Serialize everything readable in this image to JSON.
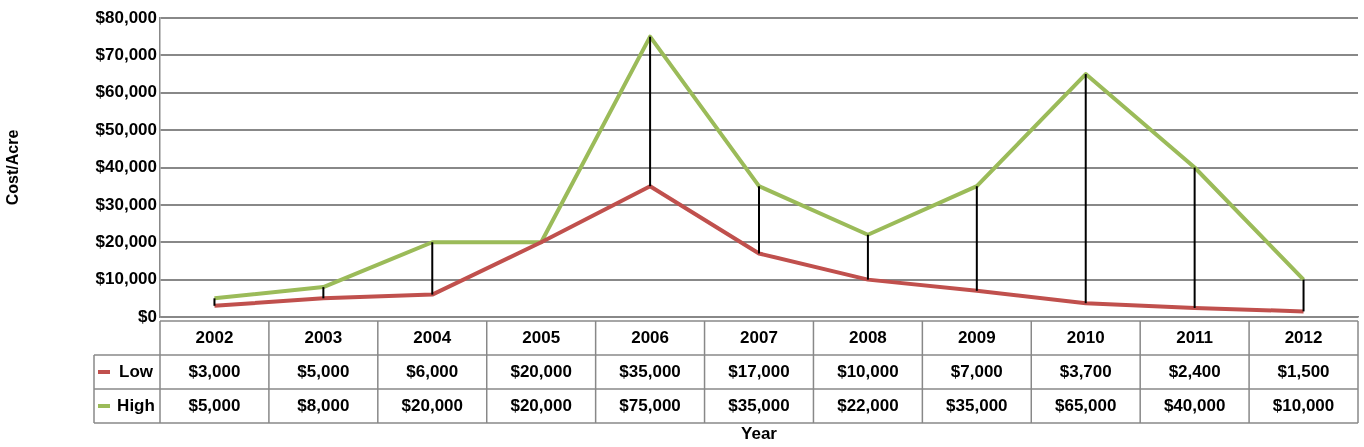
{
  "chart_data": {
    "type": "line",
    "xlabel": "Year",
    "ylabel": "Cost/Acre",
    "categories": [
      "2002",
      "2003",
      "2004",
      "2005",
      "2006",
      "2007",
      "2008",
      "2009",
      "2010",
      "2011",
      "2012"
    ],
    "series": [
      {
        "name": "Low",
        "color": "#c0504d",
        "values": [
          3000,
          5000,
          6000,
          20000,
          35000,
          17000,
          10000,
          7000,
          3700,
          2400,
          1500
        ],
        "errors": [
          [
            3000,
            5000
          ],
          [
            5000,
            8000
          ],
          [
            6000,
            20000
          ],
          [
            20000,
            20000
          ],
          [
            35000,
            75000
          ],
          [
            17000,
            35000
          ],
          [
            10000,
            22000
          ],
          [
            7000,
            35000
          ],
          [
            3700,
            65000
          ],
          [
            2400,
            40000
          ],
          [
            1500,
            10000
          ]
        ],
        "value_labels": [
          "$3,000",
          "$5,000",
          "$6,000",
          "$20,000",
          "$35,000",
          "$17,000",
          "$10,000",
          "$7,000",
          "$3,700",
          "$2,400",
          "$1,500"
        ]
      },
      {
        "name": "High",
        "color": "#9bbb59",
        "values": [
          5000,
          8000,
          20000,
          20000,
          75000,
          35000,
          22000,
          35000,
          65000,
          40000,
          10000
        ],
        "value_labels": [
          "$5,000",
          "$8,000",
          "$20,000",
          "$20,000",
          "$75,000",
          "$35,000",
          "$22,000",
          "$35,000",
          "$65,000",
          "$40,000",
          "$10,000"
        ]
      }
    ],
    "ylim": [
      0,
      80000
    ],
    "yticks": [
      {
        "value": 0,
        "label": "$0"
      },
      {
        "value": 10000,
        "label": "$10,000"
      },
      {
        "value": 20000,
        "label": "$20,000"
      },
      {
        "value": 30000,
        "label": "$30,000"
      },
      {
        "value": 40000,
        "label": "$40,000"
      },
      {
        "value": 50000,
        "label": "$50,000"
      },
      {
        "value": 60000,
        "label": "$60,000"
      },
      {
        "value": 70000,
        "label": "$70,000"
      },
      {
        "value": 80000,
        "label": "$80,000"
      }
    ],
    "grid": "y",
    "marker": "none",
    "line_style": "solid",
    "legend": "bottom left"
  }
}
